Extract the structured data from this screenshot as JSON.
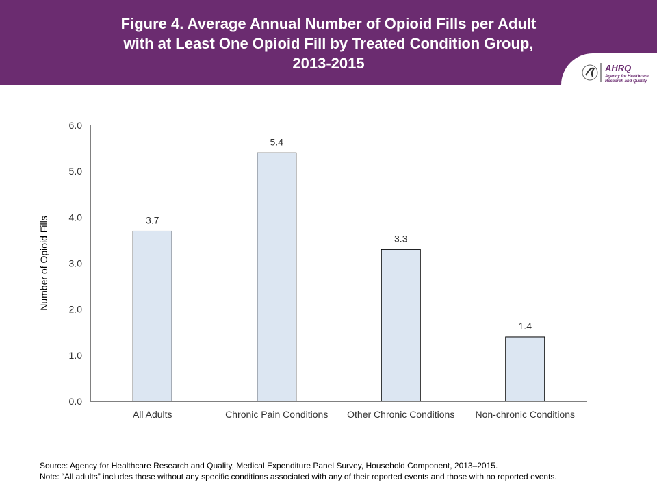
{
  "header": {
    "title_lines": [
      "Figure 4. Average Annual Number of Opioid Fills per Adult",
      "with at Least One Opioid Fill by Treated Condition Group,",
      "2013-2015"
    ],
    "logo_text": "AHRQ",
    "logo_subtext": "Agency for Healthcare Research and Quality",
    "color": "#6b2c70"
  },
  "chart_data": {
    "type": "bar",
    "title": "Figure 4. Average Annual Number of Opioid Fills per Adult with at Least One Opioid Fill by Treated Condition Group, 2013-2015",
    "categories": [
      "All Adults",
      "Chronic Pain Conditions",
      "Other Chronic Conditions",
      "Non-chronic Conditions"
    ],
    "values": [
      3.7,
      5.4,
      3.3,
      1.4
    ],
    "data_labels": [
      "3.7",
      "5.4",
      "3.3",
      "1.4"
    ],
    "xlabel": "",
    "ylabel": "Number of Opioid Fills",
    "ylim": [
      0,
      6
    ],
    "yticks": [
      "0.0",
      "1.0",
      "2.0",
      "3.0",
      "4.0",
      "5.0",
      "6.0"
    ],
    "grid": false,
    "legend": "none",
    "bar_color": "#dce6f2",
    "bar_border": "#000000"
  },
  "footer": {
    "source": "Source: Agency for Healthcare Research and Quality, Medical Expenditure Panel Survey, Household Component, 2013–2015.",
    "note": "Note: “All adults” includes those without any specific conditions associated with any of their reported events and those with no reported events."
  }
}
